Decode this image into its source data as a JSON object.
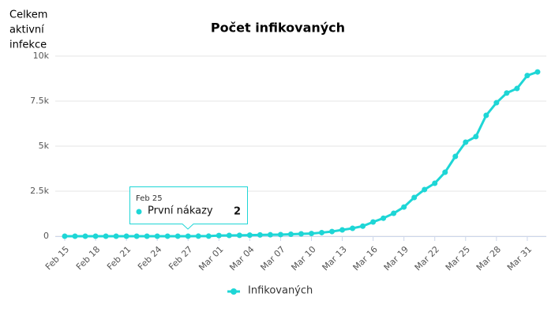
{
  "chart_data": {
    "type": "line",
    "title": "Počet infikovaných",
    "y_label": [
      "Celkem",
      "aktivní",
      "infekce"
    ],
    "categories": [
      "Feb 15",
      null,
      null,
      "Feb 18",
      null,
      null,
      "Feb 21",
      null,
      null,
      "Feb 24",
      null,
      null,
      "Feb 27",
      null,
      null,
      "Mar 01",
      null,
      null,
      "Mar 04",
      null,
      null,
      "Mar 07",
      null,
      null,
      "Mar 10",
      null,
      null,
      "Mar 13",
      null,
      null,
      "Mar 16",
      null,
      null,
      "Mar 19",
      null,
      null,
      "Mar 22",
      null,
      null,
      "Mar 25",
      null,
      null,
      "Mar 28",
      null,
      null,
      "Mar 31",
      null
    ],
    "series": [
      {
        "name": "Infikovaných",
        "color": "#1ed6d6",
        "values": [
          0,
          0,
          0,
          0,
          0,
          0,
          0,
          0,
          0,
          0,
          2,
          2,
          2,
          3,
          3,
          40,
          45,
          50,
          60,
          70,
          80,
          90,
          110,
          130,
          150,
          200,
          260,
          350,
          440,
          560,
          790,
          1000,
          1270,
          1620,
          2150,
          2590,
          2940,
          3550,
          4430,
          5220,
          5530,
          6710,
          7410,
          7950,
          8200,
          8920,
          9120
        ]
      }
    ],
    "ylim": [
      0,
      10000
    ],
    "yticks": [
      0,
      {
        "value": 2500,
        "label": "2.5k"
      },
      {
        "value": 5000,
        "label": "5k"
      },
      {
        "value": 7500,
        "label": "7.5k"
      },
      {
        "value": 10000,
        "label": "10k"
      }
    ],
    "grid": true,
    "tooltip": {
      "date": "Feb 25",
      "series": "První nákazy",
      "value": "2"
    }
  }
}
